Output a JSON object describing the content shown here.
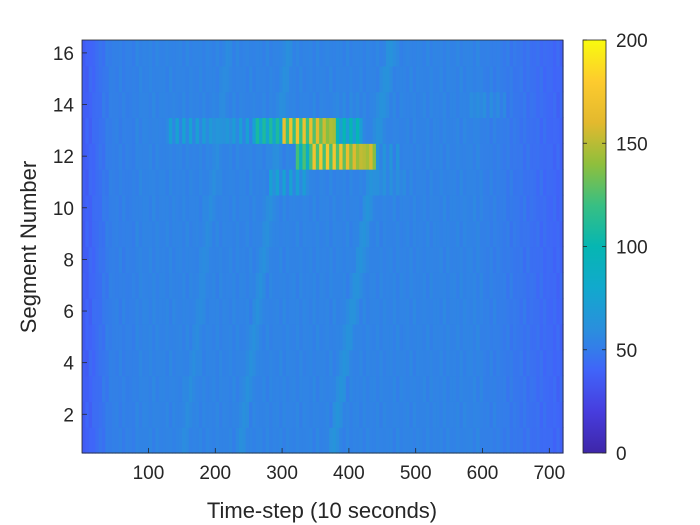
{
  "chart_data": {
    "type": "heatmap",
    "title": "",
    "xlabel": "Time-step (10 seconds)",
    "ylabel": "Segment Number",
    "xlim": [
      0.5,
      720.5
    ],
    "ylim": [
      0.5,
      16.5
    ],
    "x_ticks": [
      100,
      200,
      300,
      400,
      500,
      600,
      700
    ],
    "y_ticks": [
      2,
      4,
      6,
      8,
      10,
      12,
      14,
      16
    ],
    "x_tick_labels": [
      "100",
      "200",
      "300",
      "400",
      "500",
      "600",
      "700"
    ],
    "y_tick_labels": [
      "2",
      "4",
      "6",
      "8",
      "10",
      "12",
      "14",
      "16"
    ],
    "segments": 16,
    "timesteps": 720,
    "colorbar": {
      "colormap": "parula",
      "limits": [
        0,
        200
      ],
      "ticks": [
        0,
        50,
        100,
        150,
        200
      ],
      "tick_labels": [
        "0",
        "50",
        "100",
        "150",
        "200"
      ]
    },
    "baseline_value": 52,
    "free_flow_value": 58,
    "edge_values": {
      "t_start": 35,
      "t_end": 40
    },
    "traffic_waves": [
      {
        "x_start": 155,
        "x_end": 220,
        "value": 60
      },
      {
        "x_start": 240,
        "x_end": 310,
        "value": 62
      },
      {
        "x_start": 378,
        "x_end": 462,
        "value": 64
      }
    ],
    "congestion_bands": [
      {
        "segment": 13,
        "x_start": 130,
        "x_end": 260,
        "value": 75
      },
      {
        "segment": 13,
        "x_start": 260,
        "x_end": 300,
        "value": 110
      },
      {
        "segment": 13,
        "x_start": 300,
        "x_end": 380,
        "value": 170
      },
      {
        "segment": 13,
        "x_start": 380,
        "x_end": 420,
        "value": 100
      },
      {
        "segment": 12,
        "x_start": 320,
        "x_end": 345,
        "value": 125
      },
      {
        "segment": 12,
        "x_start": 345,
        "x_end": 440,
        "value": 175
      },
      {
        "segment": 12,
        "x_start": 440,
        "x_end": 480,
        "value": 65
      },
      {
        "segment": 11,
        "x_start": 280,
        "x_end": 340,
        "value": 75
      },
      {
        "segment": 11,
        "x_start": 430,
        "x_end": 500,
        "value": 62
      },
      {
        "segment": 14,
        "x_start": 380,
        "x_end": 450,
        "value": 58
      },
      {
        "segment": 14,
        "x_start": 580,
        "x_end": 640,
        "value": 60
      }
    ]
  }
}
